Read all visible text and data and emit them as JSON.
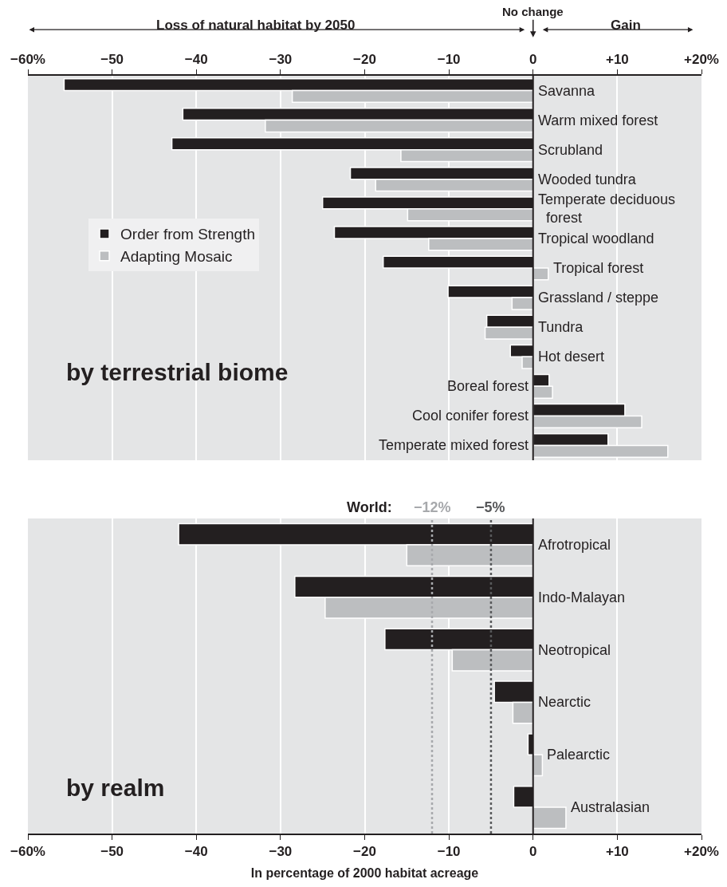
{
  "chart_data": [
    {
      "type": "bar",
      "orientation": "horizontal",
      "title": "by terrestrial biome",
      "categories": [
        "Savanna",
        "Warm mixed forest",
        "Scrubland",
        "Wooded tundra",
        "Temperate deciduous\nforest",
        "Tropical woodland",
        "Tropical forest",
        "Grassland / steppe",
        "Tundra",
        "Hot desert",
        "Boreal forest",
        "Cool conifer forest",
        "Temperate mixed forest"
      ],
      "series": [
        {
          "name": "Order from Strength",
          "color": "#231f20",
          "values": [
            -55.7,
            -41.6,
            -42.9,
            -21.7,
            -25.0,
            -23.6,
            -17.8,
            -10.1,
            -5.5,
            -2.7,
            1.9,
            10.9,
            8.9
          ]
        },
        {
          "name": "Adapting Mosaic",
          "color": "#bcbec0",
          "values": [
            -28.6,
            -31.8,
            -15.7,
            -18.7,
            -14.9,
            -12.4,
            1.8,
            -2.5,
            -5.7,
            -1.3,
            2.3,
            12.9,
            16.0
          ]
        }
      ],
      "xlim": [
        -60,
        20
      ],
      "xticks": [
        {
          "value": -60,
          "label": "−60%"
        },
        {
          "value": -50,
          "label": "−50"
        },
        {
          "value": -40,
          "label": "−40"
        },
        {
          "value": -30,
          "label": "−30"
        },
        {
          "value": -20,
          "label": "−20"
        },
        {
          "value": -10,
          "label": "−10"
        },
        0,
        {
          "value": 10,
          "label": "+10"
        },
        {
          "value": 20,
          "label": "+20%"
        }
      ],
      "grid": "x",
      "legend": "left",
      "annotations": [
        "Loss of natural habitat by 2050",
        "No change",
        "Gain"
      ]
    },
    {
      "type": "bar",
      "orientation": "horizontal",
      "title": "by realm",
      "categories": [
        "Afrotropical",
        "Indo-Malayan",
        "Neotropical",
        "Nearctic",
        "Palearctic",
        "Australasian"
      ],
      "series": [
        {
          "color": "#231f20",
          "values": [
            -42.1,
            -28.3,
            -17.6,
            -4.6,
            -0.6,
            -2.3
          ]
        },
        {
          "color": "#bcbec0",
          "values": [
            -15.0,
            -24.7,
            -9.6,
            -2.4,
            1.1,
            3.9
          ]
        }
      ],
      "xlim": [
        -60,
        20
      ],
      "xticks": [
        {
          "value": -60,
          "label": "−60%"
        },
        {
          "value": -50,
          "label": "−50"
        },
        {
          "value": -40,
          "label": "−40"
        },
        {
          "value": -30,
          "label": "−30"
        },
        {
          "value": -20,
          "label": "−20"
        },
        {
          "value": -10,
          "label": "−10"
        },
        0,
        {
          "value": 10,
          "label": "+10"
        },
        {
          "value": 20,
          "label": "+20%"
        }
      ],
      "xlabel": "In percentage of 2000 habitat acreage",
      "grid": "x",
      "legend": false,
      "ref_lines": [
        {
          "axis": "x",
          "value": -12,
          "label": "−12%",
          "color": "#a7a9ac",
          "line_style": "dotted"
        },
        {
          "axis": "x",
          "value": -5,
          "label": "−5%",
          "color": "#58595b",
          "line_style": "dotted"
        }
      ],
      "annotations": [
        "World:"
      ]
    }
  ]
}
